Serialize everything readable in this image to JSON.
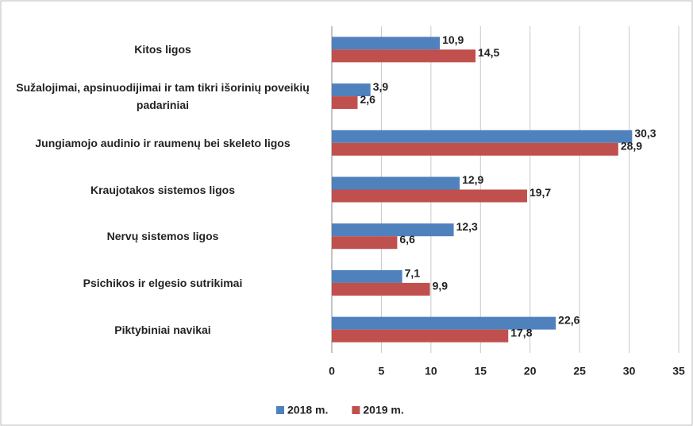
{
  "chart_data": {
    "type": "bar",
    "orientation": "horizontal",
    "categories": [
      "Kitos ligos",
      "Sužalojimai, apsinuodijimai ir tam tikri išorinių poveikių padariniai",
      "Jungiamojo audinio ir raumenų bei skeleto ligos",
      "Kraujotakos sistemos ligos",
      "Nervų sistemos ligos",
      "Psichikos ir elgesio sutrikimai",
      "Piktybiniai navikai"
    ],
    "series": [
      {
        "name": "2018 m.",
        "color": "#4f81bd",
        "values": [
          10.9,
          3.9,
          30.3,
          12.9,
          12.3,
          7.1,
          22.6
        ],
        "value_labels": [
          "10,9",
          "3,9",
          "30,3",
          "12,9",
          "12,3",
          "7,1",
          "22,6"
        ]
      },
      {
        "name": "2019 m.",
        "color": "#c0504d",
        "values": [
          14.5,
          2.6,
          28.9,
          19.7,
          6.6,
          9.9,
          17.8
        ],
        "value_labels": [
          "14,5",
          "2,6",
          "28,9",
          "19,7",
          "6,6",
          "9,9",
          "17,8"
        ]
      }
    ],
    "xlim": [
      0,
      35
    ],
    "xticks": [
      0,
      5,
      10,
      15,
      20,
      25,
      30,
      35
    ],
    "grid": true,
    "legend": "bottom"
  }
}
